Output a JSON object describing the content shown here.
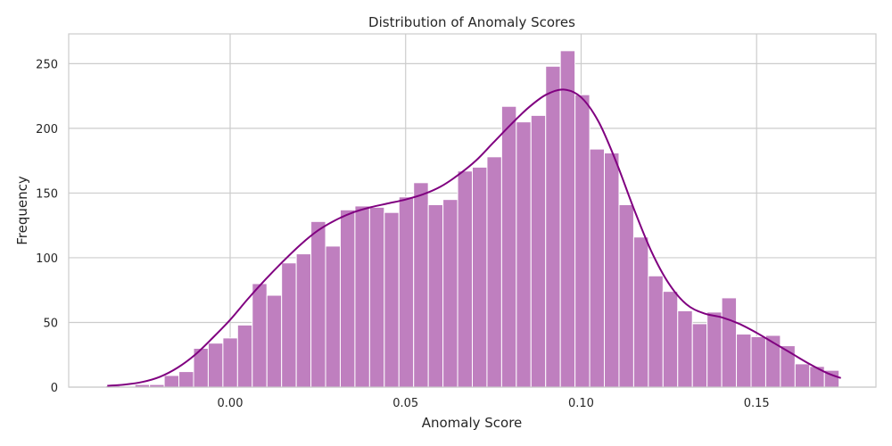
{
  "chart_data": {
    "type": "bar",
    "subtype": "histogram-with-kde",
    "title": "Distribution of Anomaly Scores",
    "xlabel": "Anomaly Score",
    "ylabel": "Frequency",
    "xlim": [
      -0.046,
      0.184
    ],
    "ylim": [
      0,
      273
    ],
    "xticks": [
      0.0,
      0.05,
      0.1,
      0.15
    ],
    "xtick_labels": [
      "0.00",
      "0.05",
      "0.10",
      "0.15"
    ],
    "yticks": [
      0,
      50,
      100,
      150,
      200,
      250
    ],
    "ytick_labels": [
      "0",
      "50",
      "100",
      "150",
      "200",
      "250"
    ],
    "grid": true,
    "legend": false,
    "bins": {
      "start": -0.0355,
      "width": 0.00418,
      "counts": [
        1,
        0,
        2,
        2,
        9,
        12,
        30,
        34,
        38,
        48,
        80,
        71,
        96,
        103,
        128,
        109,
        137,
        140,
        139,
        135,
        147,
        158,
        141,
        145,
        167,
        170,
        178,
        217,
        205,
        210,
        248,
        260,
        226,
        184,
        181,
        141,
        116,
        86,
        74,
        59,
        49,
        58,
        69,
        41,
        39,
        40,
        32,
        18,
        16,
        13
      ]
    },
    "kde": {
      "x": [
        -0.035,
        -0.03,
        -0.025,
        -0.02,
        -0.015,
        -0.01,
        -0.005,
        0.0,
        0.005,
        0.01,
        0.015,
        0.02,
        0.025,
        0.03,
        0.035,
        0.04,
        0.045,
        0.05,
        0.055,
        0.06,
        0.065,
        0.07,
        0.075,
        0.08,
        0.085,
        0.09,
        0.095,
        0.1,
        0.105,
        0.11,
        0.115,
        0.12,
        0.125,
        0.13,
        0.135,
        0.14,
        0.145,
        0.15,
        0.155,
        0.16,
        0.165,
        0.17,
        0.174
      ],
      "y": [
        1,
        2,
        4,
        8,
        15,
        25,
        38,
        52,
        68,
        83,
        97,
        110,
        121,
        129,
        135,
        139,
        142,
        145,
        149,
        155,
        164,
        175,
        189,
        203,
        216,
        226,
        230,
        224,
        205,
        174,
        138,
        105,
        80,
        64,
        57,
        54,
        49,
        42,
        34,
        26,
        18,
        11,
        7
      ]
    },
    "colors": {
      "bar_fill": "#bf7fbf",
      "bar_edge": "#ffffff",
      "kde_line": "#800080",
      "grid": "#cccccc",
      "frame": "#cccccc",
      "text": "#262626"
    }
  }
}
